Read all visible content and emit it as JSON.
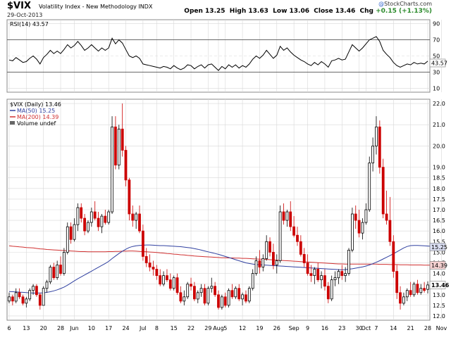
{
  "header": {
    "ticker": "$VIX",
    "name": "Volatility Index - New Methodology  INDX",
    "date": "29-Oct-2013",
    "open_label": "Open",
    "open": "13.25",
    "high_label": "High",
    "high": "13.63",
    "low_label": "Low",
    "low": "13.06",
    "close_label": "Close",
    "close": "13.46",
    "chg_label": "Chg",
    "chg": "+0.15 (+1.13%)",
    "logo": "StockCharts.com",
    "logo_mark": "@"
  },
  "rsi_panel": {
    "label": "RSI(14) 43.57",
    "current_value": "43.57",
    "ticks": [
      "90",
      "70",
      "50",
      "30",
      "10"
    ],
    "tick_values": [
      90,
      70,
      50,
      30,
      10
    ],
    "overbought": 70,
    "oversold": 30,
    "ylim": [
      5,
      95
    ]
  },
  "legend": {
    "title": "$VIX (Daily) 13.46",
    "ma50": "MA(50) 15.25",
    "ma200": "MA(200) 14.39",
    "volume": "Volume undef"
  },
  "colors": {
    "up": "#000000",
    "down": "#cc0000",
    "ma50": "#3040a0",
    "ma200": "#d03030",
    "grid": "#d8d8d8",
    "rsi_line": "#000000",
    "value_tag_close": "#ffffff",
    "value_tag_ma200": "#f4d0d0",
    "value_tag_ma50": "#d8dcf0"
  },
  "value_tags": {
    "close": "13.46",
    "ma200": "14.39",
    "ma50": "15.25",
    "rsi": "43.57"
  },
  "chart_data": {
    "type": "candlestick",
    "ylim": [
      11.8,
      22.2
    ],
    "y_ticks": [
      "22.0",
      "21.0",
      "20.0",
      "19.0",
      "18.5",
      "18.0",
      "17.5",
      "17.0",
      "16.5",
      "16.0",
      "15.5",
      "15.0",
      "14.5",
      "14.0",
      "13.5",
      "13.0",
      "12.5",
      "12.0"
    ],
    "y_tick_values": [
      22.0,
      21.0,
      20.0,
      19.0,
      18.5,
      18.0,
      17.5,
      17.0,
      16.5,
      16.0,
      15.5,
      15.0,
      14.5,
      14.0,
      13.5,
      13.0,
      12.5,
      12.0
    ],
    "x_ticks": [
      {
        "label": "6",
        "i": 0
      },
      {
        "label": "13",
        "i": 5
      },
      {
        "label": "20",
        "i": 10
      },
      {
        "label": "28",
        "i": 15
      },
      {
        "label": "Jun",
        "i": 19
      },
      {
        "label": "10",
        "i": 24
      },
      {
        "label": "17",
        "i": 29
      },
      {
        "label": "24",
        "i": 34
      },
      {
        "label": "Jul",
        "i": 39
      },
      {
        "label": "8",
        "i": 43
      },
      {
        "label": "15",
        "i": 48
      },
      {
        "label": "22",
        "i": 53
      },
      {
        "label": "29",
        "i": 58
      },
      {
        "label": "Aug",
        "i": 61
      },
      {
        "label": "5",
        "i": 63
      },
      {
        "label": "12",
        "i": 68
      },
      {
        "label": "19",
        "i": 73
      },
      {
        "label": "26",
        "i": 78
      },
      {
        "label": "Sep",
        "i": 83
      },
      {
        "label": "9",
        "i": 87
      },
      {
        "label": "16",
        "i": 92
      },
      {
        "label": "23",
        "i": 97
      },
      {
        "label": "30",
        "i": 102
      },
      {
        "label": "Oct",
        "i": 104
      },
      {
        "label": "7",
        "i": 107
      },
      {
        "label": "14",
        "i": 112
      },
      {
        "label": "21",
        "i": 117
      },
      {
        "label": "28",
        "i": 122
      },
      {
        "label": "Nov",
        "i": 126
      }
    ],
    "ohlc": [
      [
        12.7,
        13.1,
        12.6,
        12.9
      ],
      [
        12.9,
        13.0,
        12.5,
        12.7
      ],
      [
        12.7,
        13.3,
        12.6,
        13.1
      ],
      [
        13.1,
        13.3,
        12.8,
        12.9
      ],
      [
        12.9,
        13.0,
        12.5,
        12.6
      ],
      [
        12.6,
        12.9,
        12.4,
        12.8
      ],
      [
        12.8,
        13.3,
        12.7,
        13.2
      ],
      [
        13.2,
        13.5,
        13.0,
        13.4
      ],
      [
        13.4,
        13.5,
        12.9,
        13.0
      ],
      [
        13.0,
        13.1,
        12.3,
        12.5
      ],
      [
        12.5,
        13.4,
        12.5,
        13.3
      ],
      [
        13.3,
        13.7,
        13.1,
        13.6
      ],
      [
        13.6,
        14.4,
        13.5,
        14.3
      ],
      [
        14.3,
        14.5,
        13.7,
        13.8
      ],
      [
        13.8,
        14.6,
        13.7,
        14.4
      ],
      [
        14.4,
        14.8,
        13.9,
        14.0
      ],
      [
        14.0,
        15.2,
        13.9,
        15.0
      ],
      [
        15.0,
        16.4,
        14.9,
        16.2
      ],
      [
        16.2,
        16.4,
        15.4,
        15.6
      ],
      [
        15.6,
        16.6,
        15.5,
        16.3
      ],
      [
        16.3,
        17.3,
        16.0,
        17.1
      ],
      [
        17.1,
        17.3,
        16.4,
        16.6
      ],
      [
        16.6,
        16.8,
        15.8,
        16.0
      ],
      [
        16.0,
        16.5,
        15.9,
        16.4
      ],
      [
        16.4,
        17.1,
        16.2,
        16.9
      ],
      [
        16.9,
        17.4,
        16.5,
        16.6
      ],
      [
        16.6,
        16.9,
        16.0,
        16.2
      ],
      [
        16.2,
        16.8,
        15.9,
        16.7
      ],
      [
        16.7,
        17.0,
        16.3,
        16.4
      ],
      [
        16.4,
        17.0,
        16.3,
        16.9
      ],
      [
        16.9,
        21.4,
        16.8,
        20.9
      ],
      [
        20.9,
        21.4,
        18.9,
        19.1
      ],
      [
        19.1,
        21.0,
        18.9,
        20.8
      ],
      [
        20.8,
        22.0,
        19.5,
        19.8
      ],
      [
        19.8,
        20.0,
        18.1,
        18.4
      ],
      [
        18.4,
        18.5,
        16.5,
        16.8
      ],
      [
        16.8,
        17.2,
        16.2,
        16.5
      ],
      [
        16.5,
        16.9,
        16.1,
        16.8
      ],
      [
        16.8,
        17.2,
        15.9,
        16.0
      ],
      [
        16.0,
        16.3,
        14.6,
        14.8
      ],
      [
        14.8,
        15.2,
        14.3,
        14.5
      ],
      [
        14.5,
        14.9,
        14.1,
        14.3
      ],
      [
        14.3,
        14.6,
        13.9,
        14.2
      ],
      [
        14.2,
        14.4,
        13.7,
        13.9
      ],
      [
        13.9,
        14.2,
        13.4,
        13.5
      ],
      [
        13.5,
        14.1,
        13.4,
        13.9
      ],
      [
        13.9,
        14.2,
        13.6,
        13.7
      ],
      [
        13.7,
        14.0,
        13.2,
        13.3
      ],
      [
        13.3,
        13.9,
        13.2,
        13.8
      ],
      [
        13.8,
        14.0,
        13.0,
        13.1
      ],
      [
        13.1,
        13.4,
        12.6,
        12.7
      ],
      [
        12.7,
        13.2,
        12.5,
        12.9
      ],
      [
        12.9,
        13.6,
        12.8,
        13.5
      ],
      [
        13.5,
        13.8,
        13.2,
        13.4
      ],
      [
        13.4,
        13.6,
        12.7,
        12.8
      ],
      [
        12.8,
        13.2,
        12.6,
        13.1
      ],
      [
        13.1,
        13.5,
        12.9,
        13.3
      ],
      [
        13.3,
        13.5,
        12.5,
        12.6
      ],
      [
        12.6,
        13.4,
        12.5,
        13.3
      ],
      [
        13.3,
        13.8,
        13.1,
        13.4
      ],
      [
        13.4,
        13.6,
        12.9,
        13.0
      ],
      [
        13.0,
        13.2,
        12.3,
        12.4
      ],
      [
        12.4,
        13.0,
        12.3,
        12.9
      ],
      [
        12.9,
        13.1,
        12.4,
        12.5
      ],
      [
        12.5,
        13.3,
        12.4,
        13.2
      ],
      [
        13.2,
        13.5,
        12.8,
        12.9
      ],
      [
        12.9,
        13.4,
        12.8,
        13.3
      ],
      [
        13.3,
        13.5,
        12.7,
        12.8
      ],
      [
        12.8,
        13.1,
        12.5,
        13.0
      ],
      [
        13.0,
        13.2,
        12.6,
        12.7
      ],
      [
        12.7,
        13.4,
        12.6,
        13.3
      ],
      [
        13.3,
        14.2,
        13.2,
        14.0
      ],
      [
        14.0,
        14.8,
        13.9,
        14.6
      ],
      [
        14.6,
        15.1,
        14.0,
        14.3
      ],
      [
        14.3,
        14.9,
        14.1,
        14.7
      ],
      [
        14.7,
        15.8,
        14.6,
        15.5
      ],
      [
        15.5,
        15.7,
        14.8,
        15.0
      ],
      [
        15.0,
        15.4,
        14.2,
        14.4
      ],
      [
        14.4,
        14.9,
        14.0,
        14.6
      ],
      [
        14.6,
        17.2,
        14.5,
        16.9
      ],
      [
        16.9,
        17.3,
        16.3,
        16.5
      ],
      [
        16.5,
        17.0,
        16.2,
        16.9
      ],
      [
        16.9,
        17.4,
        16.0,
        16.2
      ],
      [
        16.2,
        16.7,
        15.7,
        15.8
      ],
      [
        15.8,
        16.2,
        15.3,
        15.5
      ],
      [
        15.5,
        15.8,
        14.8,
        14.9
      ],
      [
        14.9,
        15.2,
        14.3,
        14.5
      ],
      [
        14.5,
        14.9,
        13.9,
        14.0
      ],
      [
        14.0,
        14.4,
        13.6,
        13.9
      ],
      [
        13.9,
        14.3,
        13.5,
        14.2
      ],
      [
        14.2,
        14.5,
        13.6,
        13.7
      ],
      [
        13.7,
        14.1,
        13.3,
        13.9
      ],
      [
        13.9,
        14.2,
        13.2,
        13.4
      ],
      [
        13.4,
        13.6,
        12.6,
        12.8
      ],
      [
        12.8,
        13.9,
        12.7,
        13.7
      ],
      [
        13.7,
        14.1,
        13.4,
        13.8
      ],
      [
        13.8,
        14.2,
        13.5,
        14.1
      ],
      [
        14.1,
        14.4,
        13.7,
        13.9
      ],
      [
        13.9,
        14.3,
        13.6,
        14.0
      ],
      [
        14.0,
        15.2,
        13.9,
        15.1
      ],
      [
        15.1,
        17.1,
        15.0,
        16.8
      ],
      [
        16.8,
        17.2,
        16.1,
        16.5
      ],
      [
        16.5,
        17.0,
        15.7,
        15.9
      ],
      [
        15.9,
        16.6,
        15.6,
        16.4
      ],
      [
        16.4,
        17.3,
        16.3,
        17.0
      ],
      [
        17.0,
        19.5,
        16.9,
        19.2
      ],
      [
        19.2,
        20.4,
        18.8,
        20.0
      ],
      [
        20.0,
        21.4,
        19.6,
        20.9
      ],
      [
        20.9,
        21.2,
        18.7,
        19.0
      ],
      [
        19.0,
        19.4,
        16.6,
        16.8
      ],
      [
        16.8,
        17.9,
        16.3,
        16.5
      ],
      [
        16.5,
        17.6,
        15.3,
        15.5
      ],
      [
        15.5,
        15.8,
        13.8,
        14.1
      ],
      [
        14.1,
        14.4,
        12.8,
        13.1
      ],
      [
        13.1,
        13.4,
        12.3,
        12.6
      ],
      [
        12.6,
        13.1,
        12.5,
        12.9
      ],
      [
        12.9,
        13.3,
        12.7,
        13.2
      ],
      [
        13.2,
        13.6,
        12.9,
        13.0
      ],
      [
        13.0,
        13.6,
        12.9,
        13.5
      ],
      [
        13.5,
        13.7,
        13.0,
        13.1
      ],
      [
        13.1,
        13.5,
        13.0,
        13.3
      ],
      [
        13.3,
        13.6,
        13.1,
        13.2
      ],
      [
        13.25,
        13.63,
        13.06,
        13.46
      ]
    ],
    "ma50": [
      13.15,
      13.14,
      13.13,
      13.12,
      13.11,
      13.1,
      13.09,
      13.08,
      13.08,
      13.08,
      13.09,
      13.11,
      13.14,
      13.18,
      13.23,
      13.29,
      13.36,
      13.45,
      13.55,
      13.65,
      13.75,
      13.84,
      13.93,
      14.02,
      14.11,
      14.2,
      14.29,
      14.38,
      14.47,
      14.57,
      14.7,
      14.82,
      14.94,
      15.05,
      15.14,
      15.22,
      15.27,
      15.3,
      15.32,
      15.33,
      15.34,
      15.34,
      15.33,
      15.32,
      15.31,
      15.31,
      15.3,
      15.29,
      15.28,
      15.27,
      15.26,
      15.24,
      15.22,
      15.2,
      15.17,
      15.14,
      15.1,
      15.06,
      15.02,
      14.98,
      14.94,
      14.9,
      14.85,
      14.8,
      14.75,
      14.7,
      14.65,
      14.6,
      14.55,
      14.5,
      14.47,
      14.44,
      14.42,
      14.41,
      14.4,
      14.39,
      14.38,
      14.37,
      14.36,
      14.35,
      14.34,
      14.33,
      14.32,
      14.31,
      14.3,
      14.29,
      14.28,
      14.27,
      14.26,
      14.25,
      14.24,
      14.23,
      14.22,
      14.21,
      14.2,
      14.19,
      14.18,
      14.17,
      14.18,
      14.2,
      14.22,
      14.25,
      14.28,
      14.31,
      14.35,
      14.4,
      14.46,
      14.53,
      14.6,
      14.68,
      14.76,
      14.84,
      14.93,
      15.02,
      15.11,
      15.2,
      15.27,
      15.31,
      15.32,
      15.32,
      15.31,
      15.3,
      15.29,
      15.28,
      15.27,
      15.25
    ],
    "ma200": [
      15.3,
      15.28,
      15.27,
      15.25,
      15.24,
      15.22,
      15.21,
      15.2,
      15.18,
      15.16,
      15.15,
      15.13,
      15.12,
      15.11,
      15.1,
      15.09,
      15.08,
      15.07,
      15.06,
      15.05,
      15.04,
      15.03,
      15.03,
      15.02,
      15.02,
      15.02,
      15.02,
      15.02,
      15.02,
      15.03,
      15.03,
      15.04,
      15.04,
      15.05,
      15.05,
      15.06,
      15.06,
      15.05,
      15.04,
      15.03,
      15.02,
      15.01,
      15.0,
      14.99,
      14.97,
      14.96,
      14.94,
      14.93,
      14.91,
      14.9,
      14.88,
      14.87,
      14.85,
      14.84,
      14.82,
      14.81,
      14.8,
      14.79,
      14.78,
      14.77,
      14.76,
      14.75,
      14.74,
      14.74,
      14.73,
      14.73,
      14.72,
      14.72,
      14.71,
      14.71,
      14.7,
      14.69,
      14.68,
      14.67,
      14.67,
      14.66,
      14.65,
      14.64,
      14.63,
      14.62,
      14.61,
      14.6,
      14.59,
      14.58,
      14.57,
      14.56,
      14.55,
      14.54,
      14.53,
      14.52,
      14.51,
      14.5,
      14.49,
      14.48,
      14.47,
      14.46,
      14.45,
      14.45,
      14.44,
      14.44,
      14.44,
      14.44,
      14.44,
      14.44,
      14.44,
      14.44,
      14.44,
      14.44,
      14.43,
      14.43,
      14.43,
      14.42,
      14.42,
      14.42,
      14.41,
      14.41,
      14.41,
      14.4,
      14.4,
      14.4,
      14.4,
      14.39,
      14.39,
      14.39,
      14.39,
      14.39
    ],
    "rsi": [
      45,
      44,
      48,
      45,
      42,
      43,
      47,
      50,
      46,
      40,
      48,
      52,
      57,
      53,
      56,
      53,
      58,
      64,
      60,
      63,
      68,
      63,
      57,
      60,
      64,
      60,
      56,
      60,
      57,
      60,
      72,
      65,
      70,
      66,
      58,
      50,
      48,
      50,
      47,
      40,
      39,
      38,
      37,
      36,
      35,
      37,
      36,
      34,
      38,
      35,
      33,
      35,
      39,
      38,
      34,
      37,
      39,
      35,
      39,
      40,
      36,
      32,
      37,
      34,
      39,
      36,
      39,
      35,
      38,
      36,
      40,
      46,
      50,
      47,
      51,
      57,
      52,
      47,
      51,
      62,
      57,
      60,
      55,
      51,
      48,
      45,
      43,
      40,
      38,
      42,
      39,
      43,
      40,
      36,
      44,
      45,
      47,
      45,
      46,
      55,
      64,
      60,
      56,
      60,
      65,
      70,
      72,
      74,
      68,
      57,
      52,
      48,
      42,
      38,
      36,
      38,
      40,
      39,
      42,
      40,
      41,
      40,
      43.57
    ]
  }
}
